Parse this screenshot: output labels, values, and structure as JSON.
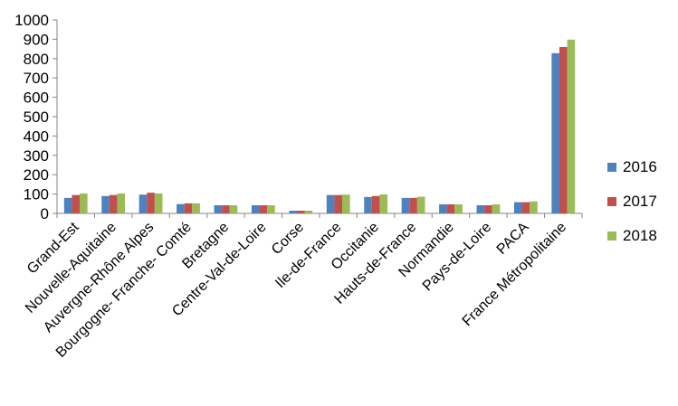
{
  "chart_data": {
    "type": "bar",
    "title": "",
    "xlabel": "",
    "ylabel": "",
    "ylim": [
      0,
      1000
    ],
    "ytick_step": 100,
    "ytick_labels": [
      "0",
      "100",
      "200",
      "300",
      "400",
      "500",
      "600",
      "700",
      "800",
      "900",
      "1000"
    ],
    "grid": false,
    "legend_position": "right",
    "categories": [
      "Grand-Est",
      "Nouvelle-Aquitaine",
      "Auvergne-Rhône Alpes",
      "Bourgogne- Franche- Comté",
      "Bretagne",
      "Centre-Val-de-Loire",
      "Corse",
      "Ile-de-France",
      "Occitanie",
      "Hauts-de-France",
      "Normandie",
      "Pays-de-Loire",
      "PACA",
      "France Métropolitaine"
    ],
    "series": [
      {
        "name": "2016",
        "color": "#4F81BD",
        "values": [
          80,
          90,
          97,
          48,
          42,
          42,
          14,
          95,
          85,
          80,
          47,
          42,
          58,
          828
        ]
      },
      {
        "name": "2017",
        "color": "#C0504D",
        "values": [
          95,
          95,
          107,
          52,
          42,
          42,
          14,
          95,
          90,
          80,
          47,
          42,
          58,
          860
        ]
      },
      {
        "name": "2018",
        "color": "#9BBB59",
        "values": [
          103,
          103,
          103,
          52,
          42,
          42,
          14,
          97,
          98,
          86,
          47,
          47,
          62,
          898
        ]
      }
    ]
  }
}
